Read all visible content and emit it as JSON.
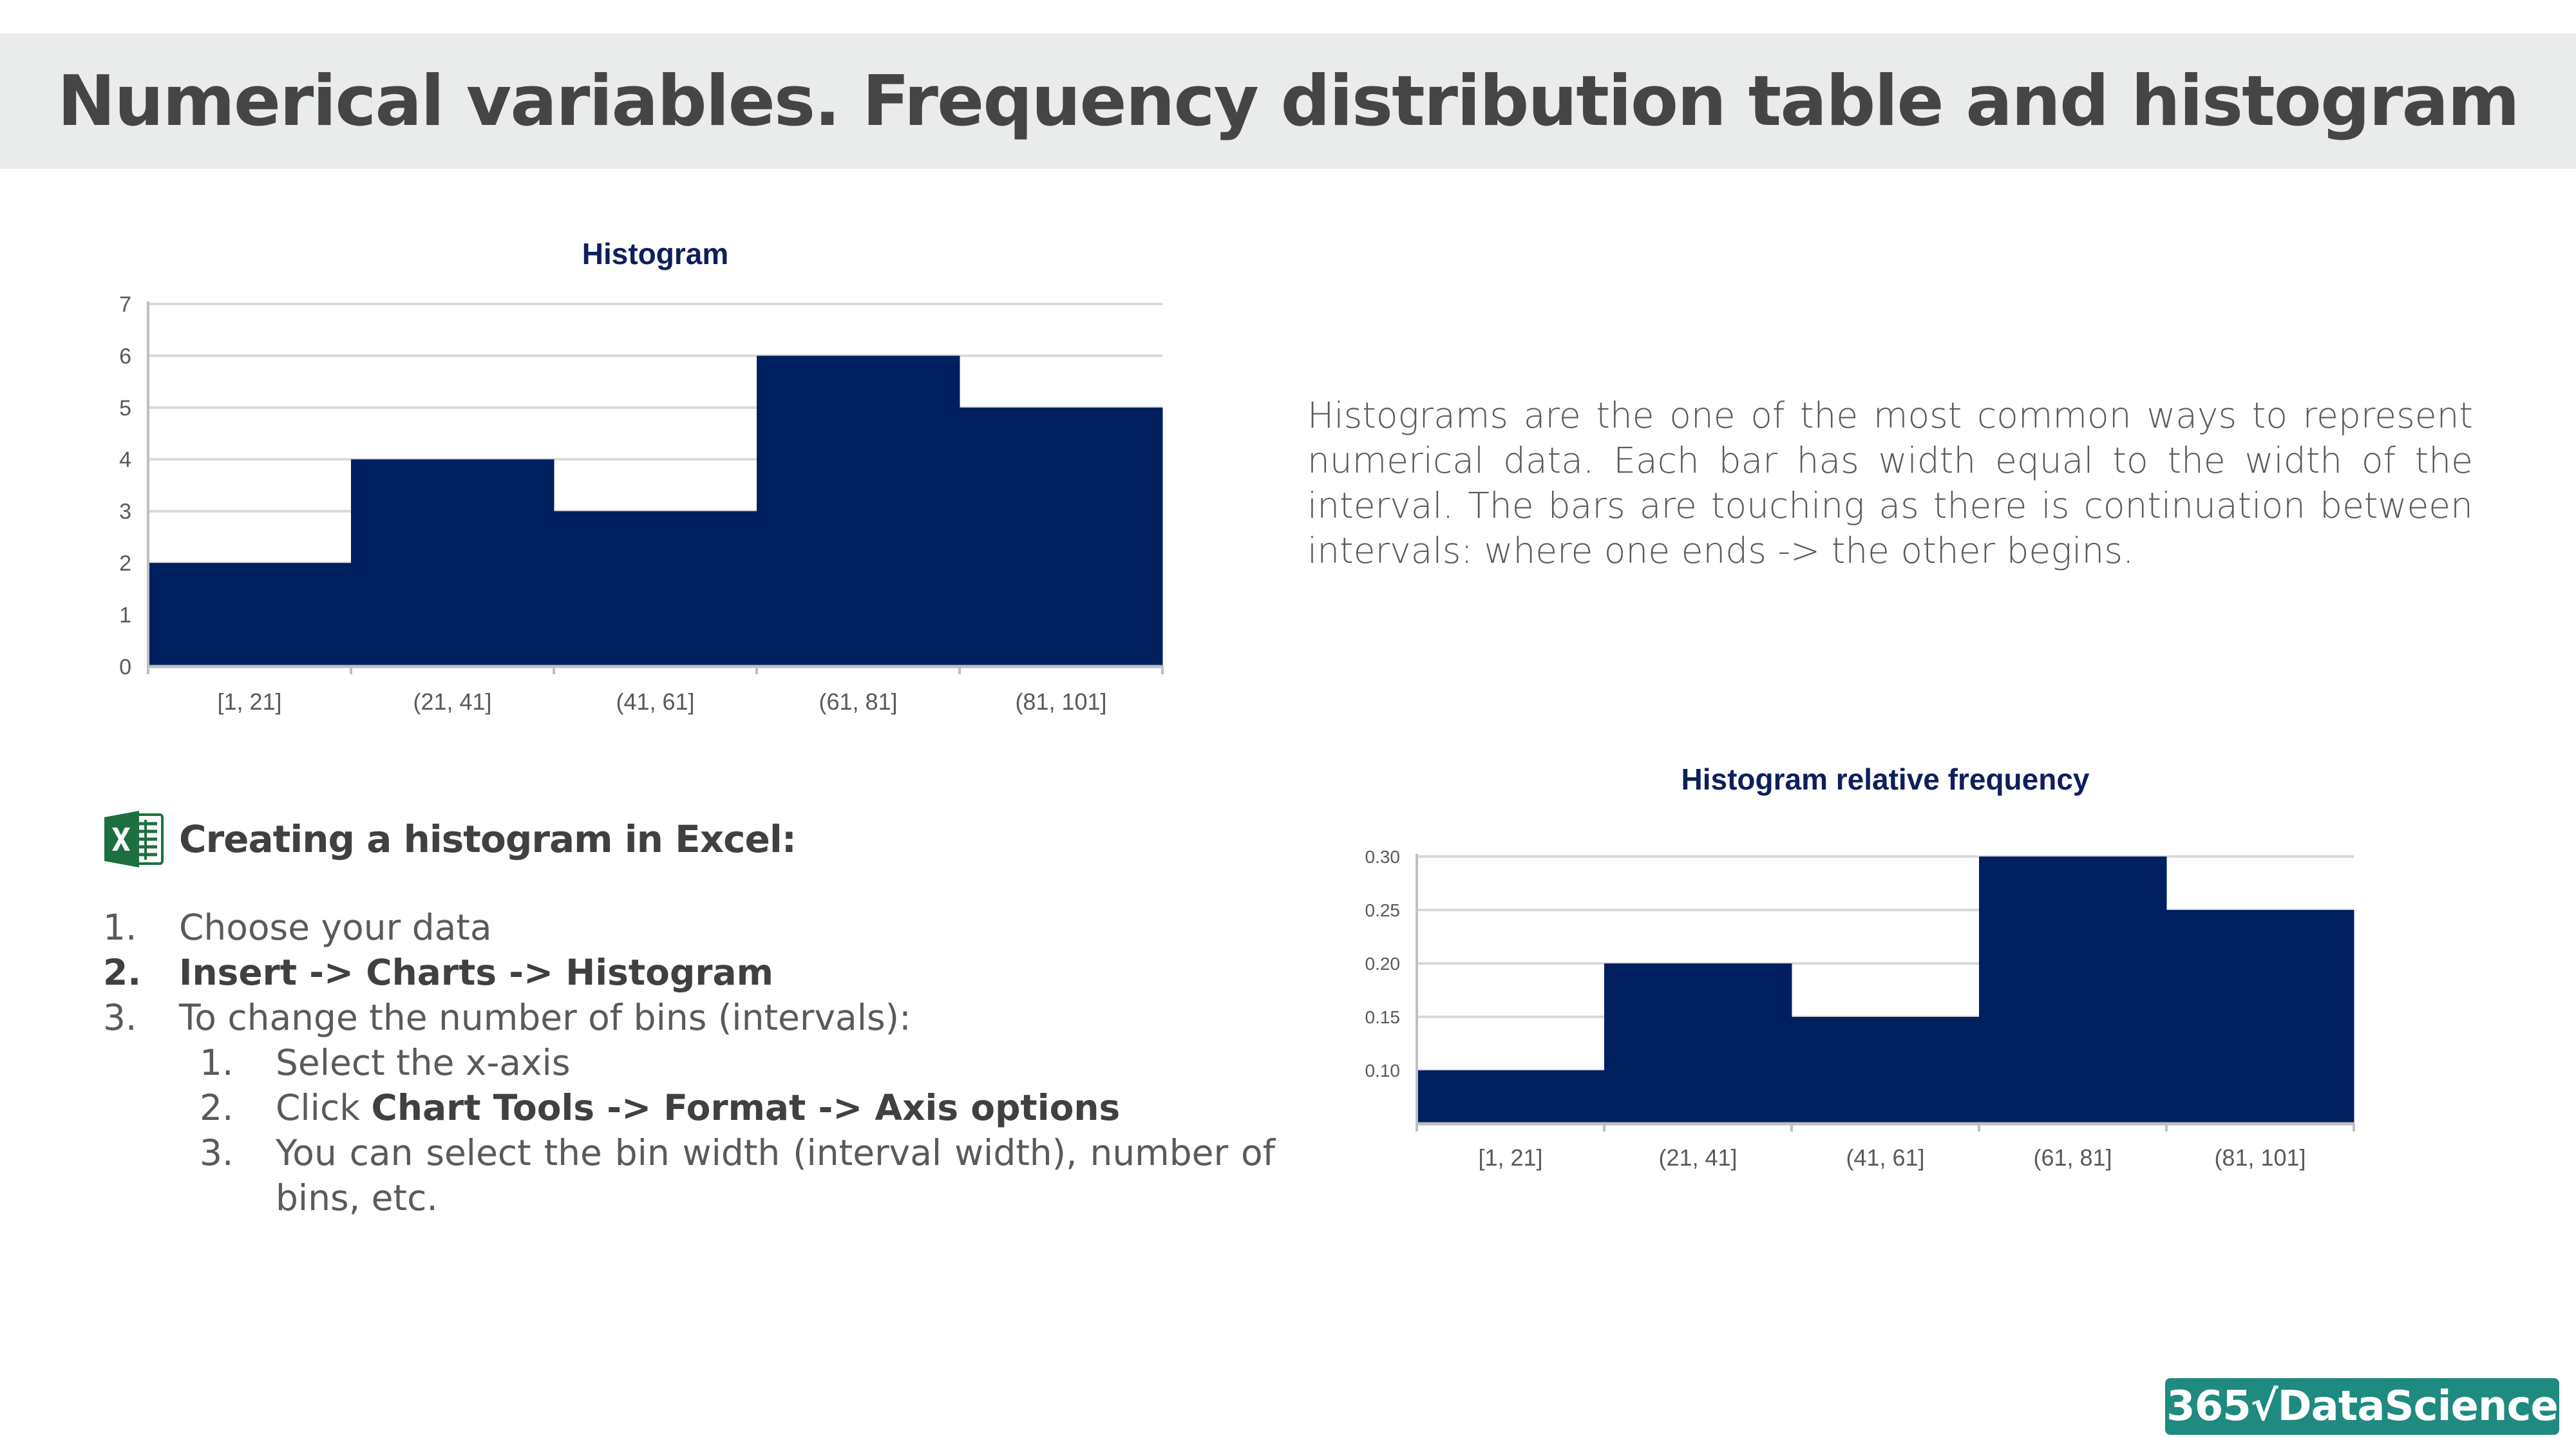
{
  "page": {
    "title": "Numerical variables. Frequency distribution table and histogram",
    "description": "Histograms are the one of the most common ways to represent numerical data. Each bar has width equal to the width of the interval. The bars are touching as there is continuation between intervals: where one ends -> the other begins.",
    "excel_heading": "Creating a histogram in Excel:",
    "logo_text": "365√DataScience",
    "steps": [
      {
        "num": "1.",
        "text": "Choose your data"
      },
      {
        "num": "2.",
        "text": "Insert -> Charts -> Histogram"
      },
      {
        "num": "3.",
        "text": "To change the number of bins (intervals):"
      }
    ],
    "substeps": [
      {
        "num": "1.",
        "text": "Select the x-axis"
      },
      {
        "num": "2.",
        "prefix": "Click ",
        "text": "Chart Tools -> Format -> Axis options"
      },
      {
        "num": "3.",
        "text": "You can select the bin width (interval width), number of bins, etc."
      }
    ]
  },
  "colors": {
    "bar": "#001f5f",
    "title_text": "#0d1f5c",
    "gridline": "#d9d9d9",
    "axis": "#bfbfbf",
    "tick_label": "#595959",
    "logo_bg": "#1f8a80"
  },
  "icons": [
    "excel-icon"
  ],
  "chart_data": [
    {
      "type": "bar",
      "title": "Histogram",
      "categories": [
        "[1, 21]",
        "(21, 41]",
        "(41, 61]",
        "(61, 81]",
        "(81, 101]"
      ],
      "values": [
        2,
        4,
        3,
        6,
        5
      ],
      "ylim": [
        0,
        7
      ],
      "yticks": [
        "0",
        "1",
        "2",
        "3",
        "4",
        "5",
        "6",
        "7"
      ],
      "xlabel": "",
      "ylabel": "",
      "grid": true,
      "legend": "none"
    },
    {
      "type": "bar",
      "title": "Histogram relative frequency",
      "categories": [
        "[1, 21]",
        "(21, 41]",
        "(41, 61]",
        "(61, 81]",
        "(81, 101]"
      ],
      "values": [
        0.1,
        0.2,
        0.15,
        0.3,
        0.25
      ],
      "ylim": [
        0.05,
        0.3
      ],
      "yticks": [
        "0.10",
        "0.15",
        "0.20",
        "0.25",
        "0.30"
      ],
      "xlabel": "",
      "ylabel": "",
      "grid": true,
      "legend": "none"
    }
  ]
}
